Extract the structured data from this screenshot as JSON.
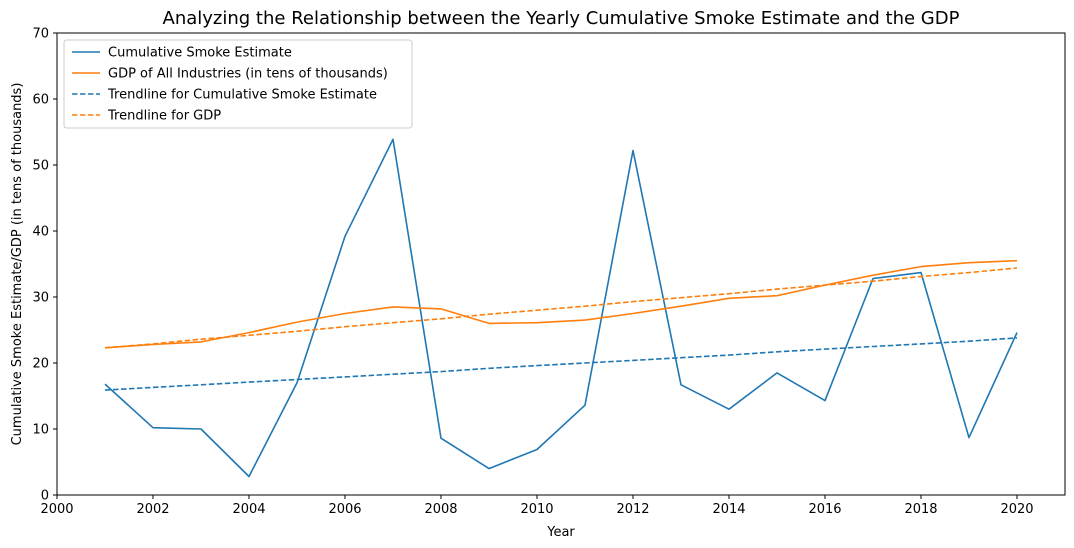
{
  "chart_data": {
    "type": "line",
    "title": "Analyzing the Relationship between the Yearly Cumulative Smoke Estimate and the GDP",
    "xlabel": "Year",
    "ylabel": "Cumulative Smoke Estimate/GDP (in tens of thousands)",
    "xlim": [
      2000,
      2021
    ],
    "ylim": [
      0,
      70
    ],
    "xticks": [
      2000,
      2002,
      2004,
      2006,
      2008,
      2010,
      2012,
      2014,
      2016,
      2018,
      2020
    ],
    "yticks": [
      0,
      10,
      20,
      30,
      40,
      50,
      60,
      70
    ],
    "legend_position": "top-left",
    "x": [
      2001,
      2002,
      2003,
      2004,
      2005,
      2006,
      2007,
      2008,
      2009,
      2010,
      2011,
      2012,
      2013,
      2014,
      2015,
      2016,
      2017,
      2018,
      2019,
      2020
    ],
    "series": [
      {
        "name": "Cumulative Smoke Estimate",
        "color": "#1f77b4",
        "style": "solid",
        "values": [
          16.8,
          10.2,
          10.0,
          2.8,
          17.0,
          39.2,
          53.9,
          8.6,
          4.0,
          6.9,
          13.6,
          52.2,
          16.7,
          13.0,
          18.5,
          14.3,
          32.8,
          33.7,
          8.7,
          24.6
        ]
      },
      {
        "name": "GDP of All Industries (in tens of thousands)",
        "color": "#ff7f0e",
        "style": "solid",
        "values": [
          22.3,
          22.8,
          23.2,
          24.6,
          26.2,
          27.5,
          28.5,
          28.2,
          26.0,
          26.1,
          26.5,
          27.5,
          28.6,
          29.8,
          30.2,
          31.8,
          33.3,
          34.6,
          35.2,
          35.5
        ]
      },
      {
        "name": "Trendline for Cumulative Smoke Estimate",
        "color": "#1f77b4",
        "style": "dashed",
        "values": [
          15.9,
          16.3,
          16.7,
          17.1,
          17.5,
          17.9,
          18.3,
          18.7,
          19.2,
          19.6,
          20.0,
          20.4,
          20.8,
          21.2,
          21.7,
          22.1,
          22.5,
          22.9,
          23.3,
          23.8
        ]
      },
      {
        "name": "Trendline for GDP",
        "color": "#ff7f0e",
        "style": "dashed",
        "values": [
          22.3,
          22.9,
          23.6,
          24.2,
          24.8,
          25.5,
          26.1,
          26.7,
          27.4,
          28.0,
          28.6,
          29.3,
          29.9,
          30.5,
          31.2,
          31.8,
          32.4,
          33.1,
          33.7,
          34.4
        ]
      }
    ]
  }
}
